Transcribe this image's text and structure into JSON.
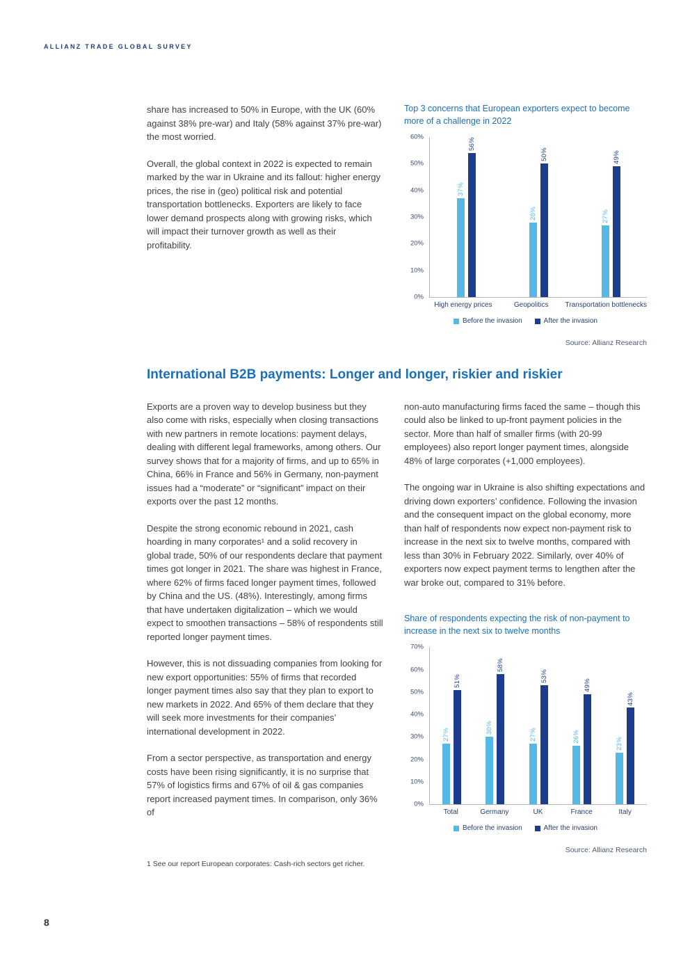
{
  "header": {
    "title": "ALLIANZ TRADE GLOBAL SURVEY"
  },
  "page": {
    "number": "8",
    "footnote": "1  See our report European corporates: Cash-rich sectors get richer."
  },
  "colors": {
    "heading_blue": "#1c6fb6",
    "navy": "#1c3d8c",
    "light_blue": "#56b8e5"
  },
  "intro": {
    "paragraphs": [
      "share has increased to 50% in Europe, with the UK (60% against 38% pre-war) and Italy (58% against 37% pre-war) the most worried.",
      "Overall, the global context in 2022 is expected to remain marked by the war in Ukraine and its fallout: higher energy prices, the rise in (geo) political risk and potential transportation bottlenecks. Exporters are likely to face lower demand prospects along with growing risks, which will impact their turnover growth as well as their profitability."
    ]
  },
  "section": {
    "heading": "International B2B payments: Longer and longer, riskier and riskier",
    "left_paragraphs": [
      "Exports are a proven way to develop business but they also come with risks, especially when closing transactions with new partners in remote locations: payment delays, dealing with different legal frameworks, among others. Our survey shows that for a majority of firms, and up to 65% in China, 66% in France and 56% in Germany, non-payment issues had a “moderate” or “significant” impact on their exports over the past 12 months.",
      "Despite the strong economic rebound in 2021, cash hoarding in many corporates¹ and a solid recovery in global trade, 50% of our respondents declare that payment times got longer in 2021. The share was highest in France, where 62% of firms faced longer payment times, followed by China and the US. (48%). Interestingly, among firms that have undertaken digitalization – which we would expect to smoothen transactions – 58% of respondents still reported longer payment times.",
      "However, this is not dissuading companies from looking for new export opportunities: 55% of firms that recorded longer payment times also say that they plan to export to new markets in 2022. And 65% of them declare that they will seek more investments for their companies’ international development in 2022.",
      "From a sector perspective, as transportation and energy costs have been rising significantly, it is no surprise that 57% of logistics firms and 67% of oil & gas companies report increased payment times. In comparison, only 36% of"
    ],
    "right_paragraphs": [
      "non-auto manufacturing firms faced the same – though this could also be linked to up-front payment policies in the sector. More than half of smaller firms (with 20-99 employees) also report longer payment times, alongside 48% of large corporates (+1,000 employees).",
      "The ongoing war in Ukraine is also shifting expectations and driving down exporters’ confidence. Following the invasion and the consequent impact on the global economy, more than half of respondents now expect non-payment risk to increase in the next six to twelve months, compared with less than 30% in February 2022. Similarly, over 40% of exporters now expect payment terms to lengthen after the war broke out, compared to 31% before."
    ]
  },
  "chart_data": [
    {
      "type": "bar",
      "title": "Top 3 concerns that European exporters expect to become more of a challenge in 2022",
      "categories": [
        "High energy prices",
        "Geopolitics",
        "Transportation bottlenecks"
      ],
      "series": [
        {
          "name": "Before the invasion",
          "color": "#56b8e5",
          "values": [
            37,
            28,
            27
          ]
        },
        {
          "name": "After the invasion",
          "color": "#1c3d8c",
          "values": [
            56,
            50,
            49
          ]
        }
      ],
      "xlabel": "",
      "ylabel": "",
      "ylim": [
        0,
        60
      ],
      "ytick_step": 10,
      "grid": false,
      "legend_position": "bottom",
      "source": "Source: Allianz Research"
    },
    {
      "type": "bar",
      "title": "Share of respondents expecting the risk of non-payment to increase in the next six to twelve months",
      "categories": [
        "Total",
        "Germany",
        "UK",
        "France",
        "Italy"
      ],
      "series": [
        {
          "name": "Before the invasion",
          "color": "#56b8e5",
          "values": [
            27,
            30,
            27,
            26,
            23
          ]
        },
        {
          "name": "After the invasion",
          "color": "#1c3d8c",
          "values": [
            51,
            58,
            53,
            49,
            43
          ]
        }
      ],
      "xlabel": "",
      "ylabel": "",
      "ylim": [
        0,
        70
      ],
      "ytick_step": 10,
      "grid": false,
      "legend_position": "bottom",
      "source": "Source: Allianz Research"
    }
  ]
}
